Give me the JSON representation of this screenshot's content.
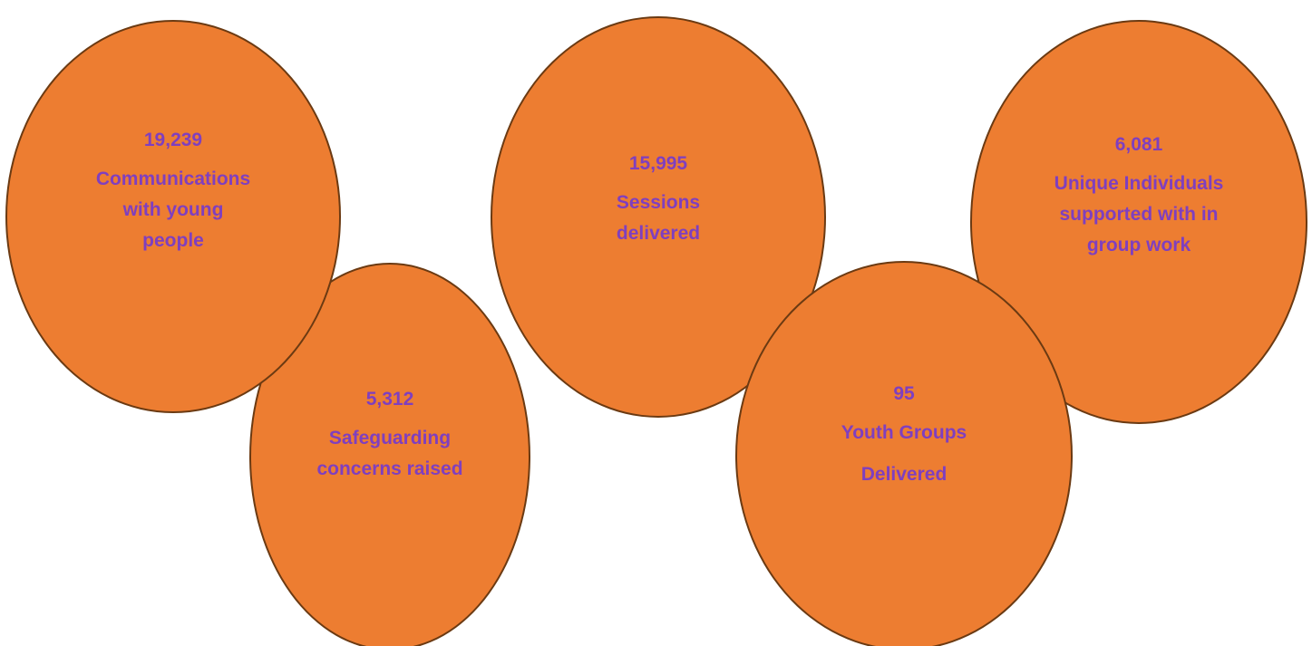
{
  "colors": {
    "circle_fill": "#ed7d31",
    "circle_border": "#6b3a12",
    "text": "#7f3fbf",
    "background": "#ffffff"
  },
  "stats": [
    {
      "value": "19,239",
      "label_lines": [
        "Communications",
        "with young",
        "people"
      ]
    },
    {
      "value": "5,312",
      "label_lines": [
        "Safeguarding",
        "concerns raised"
      ]
    },
    {
      "value": "15,995",
      "label_lines": [
        "Sessions",
        "delivered"
      ]
    },
    {
      "value": "95",
      "label_lines": [
        "Youth Groups",
        "Delivered"
      ]
    },
    {
      "value": "6,081",
      "label_lines": [
        "Unique Individuals",
        "supported with in",
        "group work"
      ]
    }
  ]
}
